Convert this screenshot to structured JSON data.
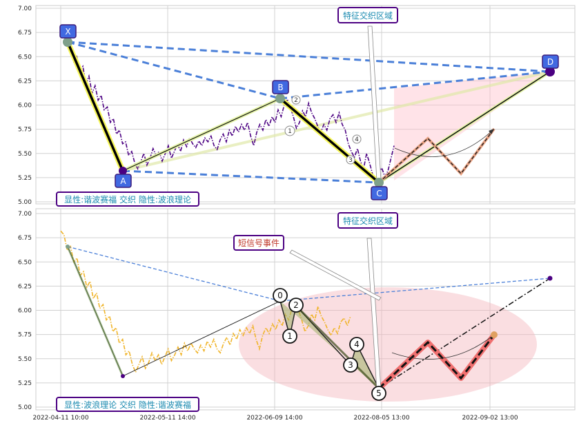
{
  "chart_data": [
    {
      "type": "line",
      "panel": "top",
      "ylim": [
        5.0,
        7.0
      ],
      "yticks": [
        "7.00",
        "6.75",
        "6.50",
        "6.25",
        "6.00",
        "5.75",
        "5.50",
        "5.25",
        "5.00"
      ],
      "grid": true,
      "series": [
        {
          "style": "dash-dot",
          "color": "#4b0082",
          "values": [
            6.64,
            6.6,
            6.45,
            6.5,
            6.35,
            6.4,
            6.22,
            6.3,
            6.12,
            6.2,
            6.05,
            6.1,
            5.95,
            5.98,
            5.82,
            5.86,
            5.7,
            5.74,
            5.6,
            5.62,
            5.48,
            5.52,
            5.4,
            5.34,
            5.42,
            5.5,
            5.38,
            5.45,
            5.55,
            5.48,
            5.52,
            5.42,
            5.5,
            5.58,
            5.45,
            5.52,
            5.6,
            5.52,
            5.64,
            5.57,
            5.66,
            5.6,
            5.56,
            5.63,
            5.58,
            5.66,
            5.62,
            5.68,
            5.58,
            5.54,
            5.64,
            5.7,
            5.62,
            5.74,
            5.68,
            5.78,
            5.72,
            5.8,
            5.74,
            5.82,
            5.68,
            5.58,
            5.72,
            5.8,
            5.74,
            5.85,
            5.78,
            5.88,
            5.82,
            5.95,
            5.88,
            6.0,
            6.06,
            5.98,
            5.88,
            5.76,
            5.82,
            5.94,
            5.88,
            6.02,
            5.92,
            5.86,
            5.78,
            5.72,
            5.8,
            5.74,
            5.86,
            5.9,
            5.82,
            5.92,
            5.8,
            5.74,
            5.6,
            5.52,
            5.46,
            5.55,
            5.42,
            5.34,
            5.5,
            5.4,
            5.28,
            5.22,
            5.3,
            5.35,
            5.26,
            5.32,
            5.45,
            5.58
          ]
        }
      ],
      "pattern_points": [
        {
          "label": "X",
          "x": 0,
          "y": 6.66
        },
        {
          "label": "A",
          "x": 1,
          "y": 5.32
        },
        {
          "label": "B",
          "x": 2,
          "y": 6.07
        },
        {
          "label": "C",
          "x": 3,
          "y": 5.21
        },
        {
          "label": "D",
          "x": 4,
          "y": 6.34
        }
      ],
      "wave_labels": [
        "2",
        "1",
        "4",
        "3"
      ],
      "annotations": [
        "特征交织区域",
        "显性:谐波赛福 交织 隐性:波浪理论"
      ]
    },
    {
      "type": "line",
      "panel": "bottom",
      "ylim": [
        5.0,
        7.0
      ],
      "yticks": [
        "7.00",
        "6.75",
        "6.50",
        "6.25",
        "6.00",
        "5.75",
        "5.50",
        "5.25",
        "5.00"
      ],
      "grid": true,
      "xticks": [
        "2022-04-11 10:00",
        "2022-05-11 14:00",
        "2022-06-09 14:00",
        "2022-08-05 13:00",
        "2022-09-02 13:00"
      ],
      "series": [
        {
          "style": "dash-dot",
          "color": "#f0b429",
          "values": [
            6.82,
            6.78,
            6.62,
            6.66,
            6.5,
            6.54,
            6.36,
            6.4,
            6.24,
            6.3,
            6.12,
            6.18,
            6.02,
            6.06,
            5.9,
            5.94,
            5.78,
            5.82,
            5.66,
            5.7,
            5.54,
            5.58,
            5.44,
            5.36,
            5.44,
            5.52,
            5.4,
            5.46,
            5.56,
            5.48,
            5.54,
            5.44,
            5.52,
            5.6,
            5.48,
            5.54,
            5.62,
            5.54,
            5.66,
            5.58,
            5.66,
            5.6,
            5.56,
            5.64,
            5.58,
            5.68,
            5.62,
            5.7,
            5.6,
            5.56,
            5.66,
            5.72,
            5.64,
            5.76,
            5.7,
            5.8,
            5.74,
            5.82,
            5.76,
            5.84,
            5.7,
            5.6,
            5.74,
            5.82,
            5.76,
            5.86,
            5.8,
            5.9,
            5.84,
            5.96,
            5.9,
            6.02,
            6.08,
            6.0,
            5.9,
            5.78,
            5.84,
            5.96,
            5.9,
            6.04,
            5.94,
            5.88,
            5.8,
            5.74,
            5.82,
            5.76,
            5.88,
            5.92,
            5.84,
            5.94
          ]
        }
      ],
      "wave_labels": [
        "0",
        "1",
        "2",
        "3",
        "4",
        "5"
      ],
      "annotations": [
        "特征交织区域",
        "短信号事件",
        "显性:波浪理论 交织 隐性:谐波赛福"
      ]
    }
  ],
  "ui": {
    "top_region_label": "特征交织区域",
    "top_caption": "显性:谐波赛福 交织 隐性:波浪理论",
    "bottom_region_label": "特征交织区域",
    "bottom_signal_label": "短信号事件",
    "bottom_caption": "显性:波浪理论 交织 隐性:谐波赛福",
    "colors": {
      "harmonic_blue": "#4a7fd8",
      "point_purple": "#4b0082",
      "label_fill": "#4169e1",
      "label_border": "#3a1a7a",
      "callout_text": "#1a8ab0",
      "signal_text": "#c0392b",
      "pink": "#ffc0cb",
      "grid": "#d0d0d0"
    }
  }
}
